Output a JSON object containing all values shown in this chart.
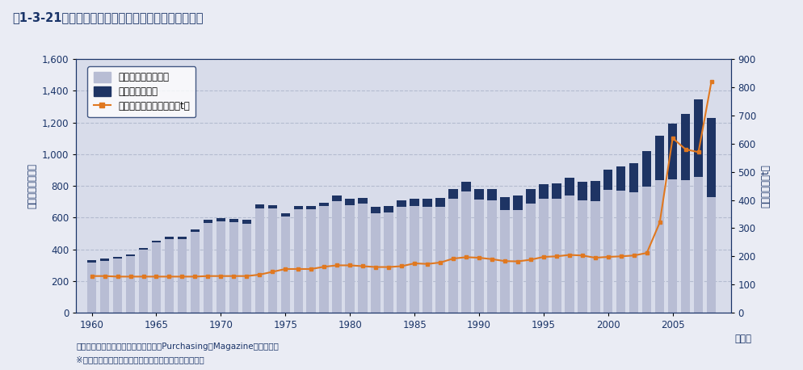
{
  "years": [
    1960,
    1961,
    1962,
    1963,
    1964,
    1965,
    1966,
    1967,
    1968,
    1969,
    1970,
    1971,
    1972,
    1973,
    1974,
    1975,
    1976,
    1977,
    1978,
    1979,
    1980,
    1981,
    1982,
    1983,
    1984,
    1985,
    1986,
    1987,
    1988,
    1989,
    1990,
    1991,
    1992,
    1993,
    1994,
    1995,
    1996,
    1997,
    1998,
    1999,
    2000,
    2001,
    2002,
    2003,
    2004,
    2005,
    2006,
    2007,
    2008
  ],
  "china": [
    18,
    18,
    9,
    10,
    11,
    12,
    15,
    15,
    16,
    18,
    18,
    21,
    23,
    25,
    21,
    24,
    21,
    23,
    22,
    34,
    37,
    36,
    37,
    40,
    43,
    47,
    52,
    56,
    59,
    61,
    66,
    70,
    80,
    90,
    93,
    95,
    101,
    108,
    115,
    125,
    128,
    152,
    182,
    222,
    283,
    353,
    418,
    489,
    500
  ],
  "ex_china": [
    316,
    325,
    343,
    356,
    397,
    444,
    466,
    465,
    511,
    567,
    578,
    572,
    563,
    658,
    659,
    605,
    654,
    651,
    672,
    706,
    680,
    688,
    629,
    633,
    666,
    672,
    666,
    670,
    720,
    765,
    716,
    710,
    647,
    647,
    687,
    717,
    717,
    742,
    711,
    705,
    777,
    771,
    762,
    798,
    836,
    842,
    836,
    859,
    731
  ],
  "price": [
    130,
    130,
    128,
    128,
    128,
    128,
    128,
    128,
    128,
    130,
    130,
    130,
    130,
    135,
    145,
    155,
    155,
    155,
    163,
    168,
    168,
    165,
    162,
    162,
    165,
    175,
    173,
    178,
    192,
    197,
    195,
    190,
    183,
    182,
    188,
    198,
    200,
    205,
    203,
    195,
    198,
    200,
    203,
    212,
    320,
    620,
    580,
    570,
    820
  ],
  "title": "図1-3-21　世界の粗鐘生産量と鉄価格（ドル）の推移",
  "ylabel_left": "（単位：百万ｔ）",
  "ylabel_right": "（単位：＄／t）",
  "xlabel": "（年）",
  "legend_ex_china": "生産量（中国以外）",
  "legend_china": "生産量（中国）",
  "legend_price": "価格（熱延鐘板）（＄／t）",
  "source_text": "出典：世界鉄銅協会（粗鐘生産量）、Purchasing　Magazine（鉄価格）",
  "note_text": "※　鉄価格は、アメリカ市場における年平均の実勢価格",
  "bar_color_ex_china": "#b8bdd4",
  "bar_color_china": "#1e3464",
  "line_color": "#e07820",
  "bg_color": "#eaecf4",
  "plot_bg_color": "#d8dcea",
  "grid_color": "#b0b8cc",
  "title_color": "#1a3468",
  "axis_color": "#1a3468",
  "ylim_left": [
    0,
    1600
  ],
  "ylim_right": [
    0,
    900
  ],
  "yticks_left": [
    0,
    200,
    400,
    600,
    800,
    1000,
    1200,
    1400,
    1600
  ],
  "yticks_right": [
    0,
    100,
    200,
    300,
    400,
    500,
    600,
    700,
    800,
    900
  ]
}
